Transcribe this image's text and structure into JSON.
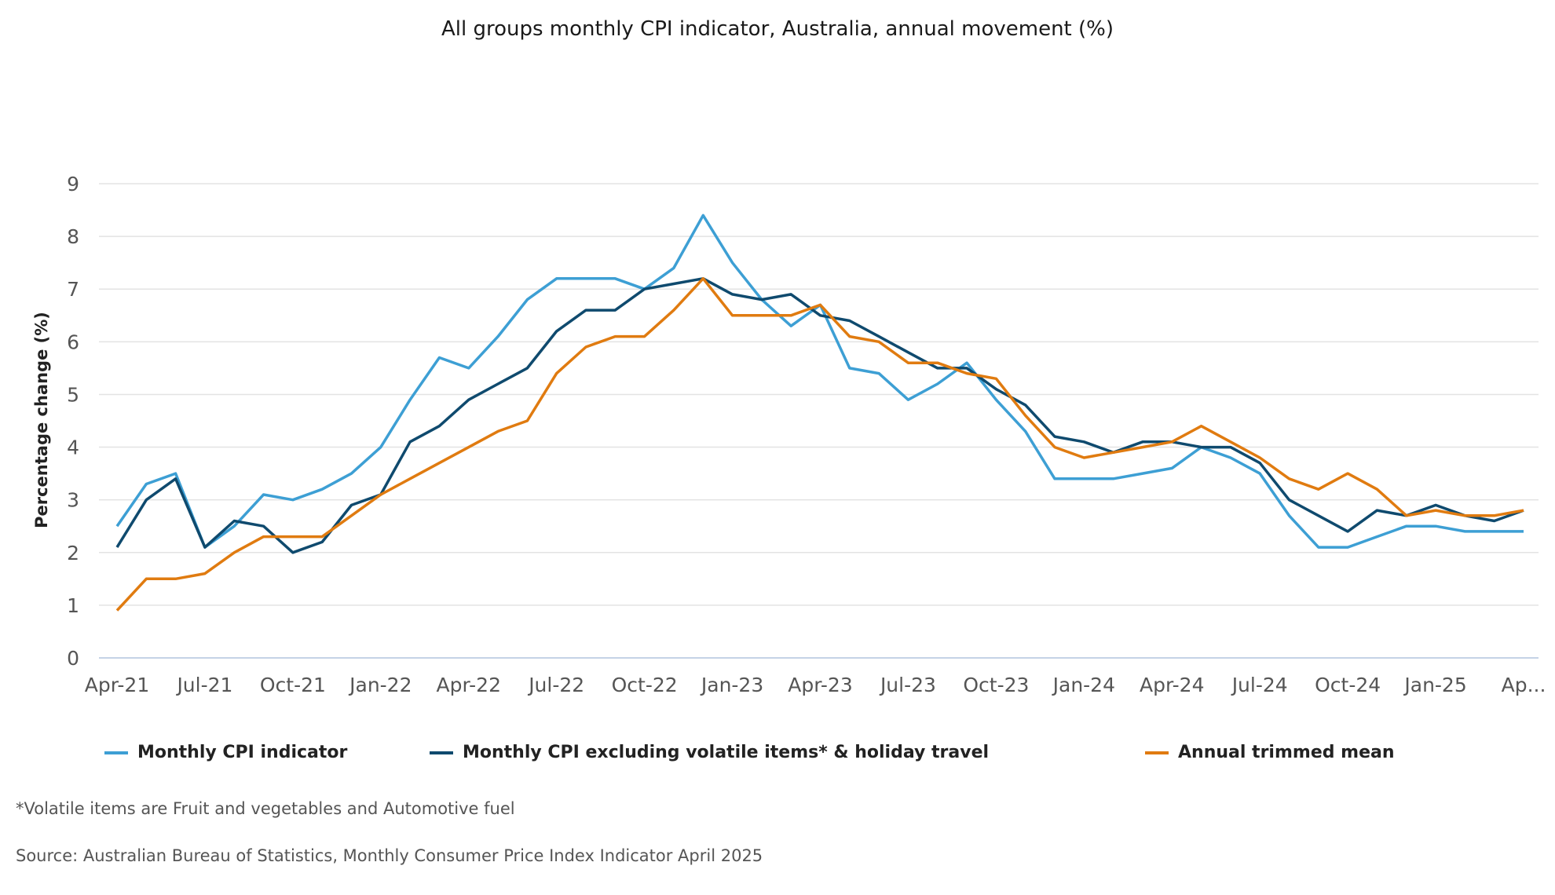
{
  "title": "All groups monthly CPI indicator, Australia, annual movement (%)",
  "footnote": "*Volatile items are Fruit and vegetables and Automotive fuel",
  "source": "Source: Australian Bureau of Statistics, Monthly Consumer Price Index Indicator April 2025",
  "chart_data": {
    "type": "line",
    "title": "All groups monthly CPI indicator, Australia, annual movement (%)",
    "xlabel": "",
    "ylabel": "Percentage change (%)",
    "ylim": [
      0,
      9
    ],
    "yticks": [
      "0",
      "1",
      "2",
      "3",
      "4",
      "5",
      "6",
      "7",
      "8",
      "9"
    ],
    "grid": true,
    "legend_placement": "bottom",
    "x": [
      "Apr-21",
      "May-21",
      "Jun-21",
      "Jul-21",
      "Aug-21",
      "Sep-21",
      "Oct-21",
      "Nov-21",
      "Dec-21",
      "Jan-22",
      "Feb-22",
      "Mar-22",
      "Apr-22",
      "May-22",
      "Jun-22",
      "Jul-22",
      "Aug-22",
      "Sep-22",
      "Oct-22",
      "Nov-22",
      "Dec-22",
      "Jan-23",
      "Feb-23",
      "Mar-23",
      "Apr-23",
      "May-23",
      "Jun-23",
      "Jul-23",
      "Aug-23",
      "Sep-23",
      "Oct-23",
      "Nov-23",
      "Dec-23",
      "Jan-24",
      "Feb-24",
      "Mar-24",
      "Apr-24",
      "May-24",
      "Jun-24",
      "Jul-24",
      "Aug-24",
      "Sep-24",
      "Oct-24",
      "Nov-24",
      "Dec-24",
      "Jan-25",
      "Feb-25",
      "Mar-25",
      "Apr-25"
    ],
    "xtick_labels": [
      "Apr-21",
      "Jul-21",
      "Oct-21",
      "Jan-22",
      "Apr-22",
      "Jul-22",
      "Oct-22",
      "Jan-23",
      "Apr-23",
      "Jul-23",
      "Oct-23",
      "Jan-24",
      "Apr-24",
      "Jul-24",
      "Oct-24",
      "Jan-25",
      "Ap..."
    ],
    "series": [
      {
        "name": "Monthly CPI indicator",
        "color": "#3d9fd4",
        "values": [
          2.5,
          3.3,
          3.5,
          2.1,
          2.5,
          3.1,
          3.0,
          3.2,
          3.5,
          4.0,
          4.9,
          5.7,
          5.5,
          6.1,
          6.8,
          7.2,
          7.2,
          7.2,
          7.0,
          7.4,
          8.4,
          7.5,
          6.8,
          6.3,
          6.7,
          5.5,
          5.4,
          4.9,
          5.2,
          5.6,
          4.9,
          4.3,
          3.4,
          3.4,
          3.4,
          3.5,
          3.6,
          4.0,
          3.8,
          3.5,
          2.7,
          2.1,
          2.1,
          2.3,
          2.5,
          2.5,
          2.4,
          2.4,
          2.4
        ]
      },
      {
        "name": "Monthly CPI excluding volatile items* & holiday travel",
        "color": "#0f4a6e",
        "values": [
          2.1,
          3.0,
          3.4,
          2.1,
          2.6,
          2.5,
          2.0,
          2.2,
          2.9,
          3.1,
          4.1,
          4.4,
          4.9,
          5.2,
          5.5,
          6.2,
          6.6,
          6.6,
          7.0,
          7.1,
          7.2,
          6.9,
          6.8,
          6.9,
          6.5,
          6.4,
          6.1,
          5.8,
          5.5,
          5.5,
          5.1,
          4.8,
          4.2,
          4.1,
          3.9,
          4.1,
          4.1,
          4.0,
          4.0,
          3.7,
          3.0,
          2.7,
          2.4,
          2.8,
          2.7,
          2.9,
          2.7,
          2.6,
          2.8
        ]
      },
      {
        "name": "Annual trimmed mean",
        "color": "#e07b10",
        "values": [
          0.9,
          1.5,
          1.5,
          1.6,
          2.0,
          2.3,
          2.3,
          2.3,
          2.7,
          3.1,
          3.4,
          3.7,
          4.0,
          4.3,
          4.5,
          5.4,
          5.9,
          6.1,
          6.1,
          6.6,
          7.2,
          6.5,
          6.5,
          6.5,
          6.7,
          6.1,
          6.0,
          5.6,
          5.6,
          5.4,
          5.3,
          4.6,
          4.0,
          3.8,
          3.9,
          4.0,
          4.1,
          4.4,
          4.1,
          3.8,
          3.4,
          3.2,
          3.5,
          3.2,
          2.7,
          2.8,
          2.7,
          2.7,
          2.8
        ]
      }
    ]
  }
}
